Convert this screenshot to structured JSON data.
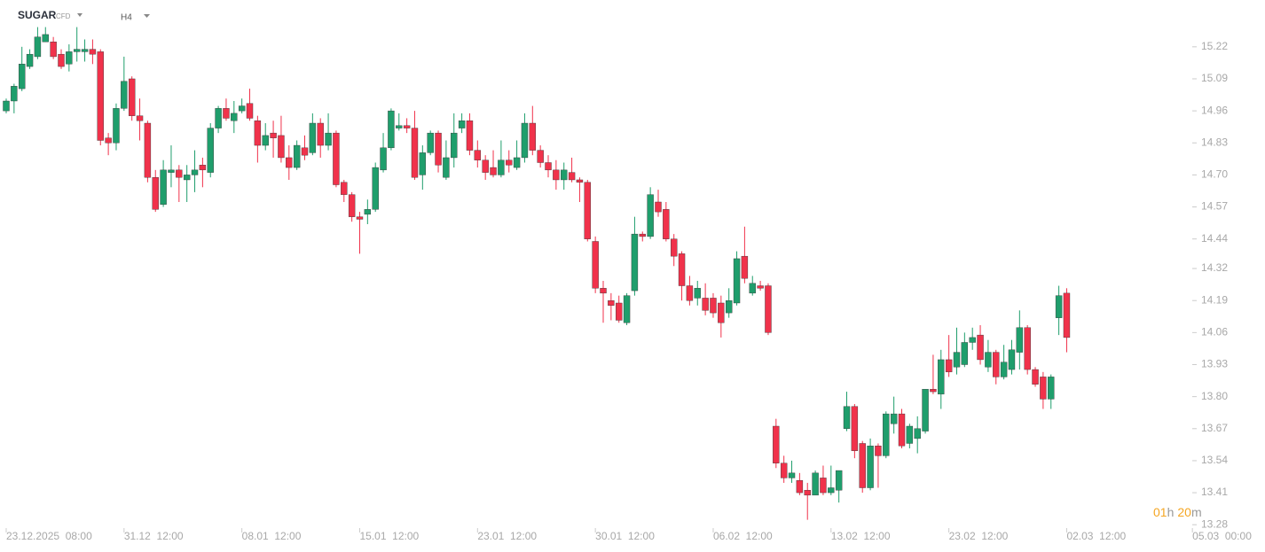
{
  "header": {
    "symbol": "SUGAR",
    "instrument": "CFD",
    "timeframe": "H4"
  },
  "countdown": [
    "01",
    "h",
    "20",
    "m"
  ],
  "chart_data": {
    "type": "candlestick",
    "colors": {
      "up": "#1f9e6c",
      "down": "#f0324b"
    },
    "xlim": [
      0,
      152
    ],
    "xticks": [
      {
        "value": 0,
        "label": "23.12.2025  08:00"
      },
      {
        "value": 15,
        "label": "31.12  12:00"
      },
      {
        "value": 30,
        "label": "08.01  12:00"
      },
      {
        "value": 45,
        "label": "15.01  12:00"
      },
      {
        "value": 60,
        "label": "23.01  12:00"
      },
      {
        "value": 75,
        "label": "30.01  12:00"
      },
      {
        "value": 90,
        "label": "06.02  12:00"
      },
      {
        "value": 105,
        "label": "13.02  12:00"
      },
      {
        "value": 120,
        "label": "23.02  12:00"
      },
      {
        "value": 135,
        "label": "02.03  12:00"
      },
      {
        "value": 151,
        "label": "05.03  00:00"
      }
    ],
    "ylim": [
      13.27,
      15.41
    ],
    "yticks": [
      15.22,
      15.09,
      14.96,
      14.83,
      {
        "value": 14.7,
        "label": "14.70"
      },
      14.57,
      14.44,
      14.32,
      14.19,
      14.06,
      13.93,
      {
        "value": 13.8,
        "label": "13.80"
      },
      13.67,
      13.54,
      13.41,
      13.28
    ],
    "open": [
      14.96,
      15.0,
      15.05,
      15.14,
      15.18,
      15.24,
      15.24,
      15.19,
      15.15,
      15.2,
      15.2,
      15.21,
      15.2,
      14.85,
      14.83,
      14.97,
      15.09,
      14.94,
      14.91,
      14.69,
      14.58,
      14.71,
      14.72,
      14.68,
      14.7,
      14.74,
      14.71,
      14.89,
      14.97,
      14.92,
      14.96,
      14.99,
      14.92,
      14.82,
      14.87,
      14.86,
      14.77,
      14.73,
      14.81,
      14.79,
      14.91,
      14.82,
      14.87,
      14.67,
      14.62,
      14.53,
      14.54,
      14.56,
      14.72,
      14.81,
      14.89,
      14.9,
      14.89,
      14.7,
      14.79,
      14.87,
      14.69,
      14.77,
      14.89,
      14.92,
      14.8,
      14.76,
      14.73,
      14.7,
      14.76,
      14.73,
      14.77,
      14.91,
      14.8,
      14.75,
      14.72,
      14.68,
      14.71,
      14.68,
      14.67,
      14.43,
      14.24,
      14.19,
      14.18,
      14.1,
      14.23,
      14.46,
      14.45,
      14.59,
      14.56,
      14.44,
      14.38,
      14.25,
      14.2,
      14.2,
      14.2,
      14.18,
      14.14,
      14.18,
      14.37,
      14.22,
      14.25,
      14.25,
      13.68,
      13.53,
      13.47,
      13.46,
      13.42,
      13.4,
      13.47,
      13.41,
      13.42,
      13.67,
      13.76,
      13.61,
      13.43,
      13.6,
      13.56,
      13.69,
      13.73,
      13.61,
      13.63,
      13.66,
      13.83,
      13.81,
      13.95,
      13.92,
      13.93,
      14.02,
      14.05,
      13.92,
      13.98,
      13.88,
      13.91,
      13.98,
      14.08,
      13.91,
      13.88,
      13.79,
      14.12,
      14.22
    ],
    "high": [
      15.01,
      15.07,
      15.22,
      15.21,
      15.3,
      15.3,
      15.26,
      15.21,
      15.23,
      15.3,
      15.25,
      15.25,
      15.21,
      14.87,
      14.99,
      15.18,
      15.1,
      15.01,
      14.92,
      14.72,
      14.76,
      14.82,
      14.74,
      14.74,
      14.8,
      14.77,
      14.91,
      14.98,
      15.01,
      15.0,
      15.01,
      15.05,
      14.94,
      14.91,
      14.92,
      14.94,
      14.82,
      14.84,
      14.86,
      14.95,
      14.93,
      14.95,
      14.88,
      14.68,
      14.63,
      14.55,
      14.6,
      14.75,
      14.87,
      14.97,
      14.95,
      14.93,
      14.96,
      14.82,
      14.88,
      14.88,
      14.84,
      14.95,
      14.95,
      14.95,
      14.84,
      14.78,
      14.8,
      14.84,
      14.8,
      14.84,
      14.95,
      14.98,
      14.82,
      14.78,
      14.76,
      14.75,
      14.77,
      14.69,
      14.68,
      14.45,
      14.27,
      14.22,
      14.21,
      14.22,
      14.53,
      14.47,
      14.65,
      14.64,
      14.59,
      14.46,
      14.39,
      14.29,
      14.27,
      14.26,
      14.22,
      14.21,
      14.24,
      14.39,
      14.49,
      14.29,
      14.27,
      14.26,
      13.71,
      13.56,
      13.54,
      13.49,
      13.45,
      13.5,
      13.52,
      13.52,
      13.5,
      13.82,
      13.77,
      13.62,
      13.63,
      13.61,
      13.74,
      13.8,
      13.75,
      13.69,
      13.72,
      13.83,
      13.97,
      13.99,
      14.05,
      14.08,
      14.06,
      14.08,
      14.09,
      14.03,
      13.99,
      14.01,
      14.03,
      14.15,
      14.09,
      13.92,
      13.9,
      13.89,
      14.25,
      14.24
    ],
    "low": [
      14.95,
      14.95,
      15.04,
      15.13,
      15.17,
      15.24,
      15.17,
      15.13,
      15.12,
      15.16,
      15.16,
      15.15,
      14.82,
      14.78,
      14.8,
      14.96,
      14.92,
      14.84,
      14.67,
      14.55,
      14.57,
      14.65,
      14.59,
      14.59,
      14.63,
      14.65,
      14.69,
      14.87,
      14.92,
      14.87,
      14.95,
      14.92,
      14.75,
      14.8,
      14.77,
      14.75,
      14.68,
      14.72,
      14.76,
      14.78,
      14.77,
      14.8,
      14.65,
      14.59,
      14.51,
      14.38,
      14.5,
      14.55,
      14.71,
      14.8,
      14.88,
      14.87,
      14.68,
      14.64,
      14.78,
      14.71,
      14.68,
      14.73,
      14.87,
      14.78,
      14.73,
      14.68,
      14.69,
      14.69,
      14.71,
      14.72,
      14.75,
      14.78,
      14.73,
      14.69,
      14.64,
      14.64,
      14.67,
      14.59,
      14.43,
      14.22,
      14.1,
      14.11,
      14.1,
      14.09,
      14.21,
      14.43,
      14.44,
      14.53,
      14.43,
      14.33,
      14.19,
      14.17,
      14.17,
      14.13,
      14.12,
      14.04,
      14.12,
      14.17,
      14.26,
      14.21,
      14.23,
      14.05,
      13.51,
      13.45,
      13.45,
      13.4,
      13.3,
      13.4,
      13.4,
      13.4,
      13.37,
      13.66,
      13.55,
      13.41,
      13.42,
      13.43,
      13.55,
      13.65,
      13.59,
      13.59,
      13.57,
      13.65,
      13.81,
      13.75,
      13.88,
      13.89,
      13.92,
      13.99,
      13.93,
      13.9,
      13.85,
      13.87,
      13.89,
      13.91,
      13.89,
      13.84,
      13.75,
      13.75,
      14.05,
      13.98
    ],
    "close": [
      15.0,
      15.06,
      15.15,
      15.19,
      15.26,
      15.27,
      15.18,
      15.14,
      15.2,
      15.21,
      15.21,
      15.19,
      14.84,
      14.83,
      14.97,
      15.08,
      14.94,
      14.92,
      14.69,
      14.56,
      14.72,
      14.72,
      14.69,
      14.7,
      14.72,
      14.72,
      14.89,
      14.97,
      14.93,
      14.95,
      14.98,
      14.93,
      14.82,
      14.86,
      14.85,
      14.77,
      14.73,
      14.82,
      14.78,
      14.91,
      14.82,
      14.87,
      14.66,
      14.62,
      14.53,
      14.52,
      14.56,
      14.73,
      14.81,
      14.96,
      14.9,
      14.89,
      14.69,
      14.79,
      14.87,
      14.74,
      14.77,
      14.87,
      14.92,
      14.8,
      14.76,
      14.71,
      14.7,
      14.76,
      14.74,
      14.77,
      14.91,
      14.8,
      14.75,
      14.72,
      14.68,
      14.72,
      14.68,
      14.67,
      14.44,
      14.24,
      14.22,
      14.17,
      14.11,
      14.21,
      14.46,
      14.45,
      14.62,
      14.55,
      14.44,
      14.37,
      14.25,
      14.19,
      14.24,
      14.15,
      14.14,
      14.1,
      14.19,
      14.36,
      14.28,
      14.26,
      14.24,
      14.06,
      13.53,
      13.47,
      13.49,
      13.41,
      13.4,
      13.49,
      13.41,
      13.43,
      13.5,
      13.76,
      13.58,
      13.43,
      13.6,
      13.56,
      13.73,
      13.73,
      13.6,
      13.68,
      13.67,
      13.83,
      13.82,
      13.95,
      13.9,
      13.98,
      14.02,
      14.04,
      13.95,
      13.98,
      13.88,
      13.94,
      13.99,
      14.08,
      13.91,
      13.85,
      13.79,
      13.88,
      14.21,
      14.04
    ]
  }
}
